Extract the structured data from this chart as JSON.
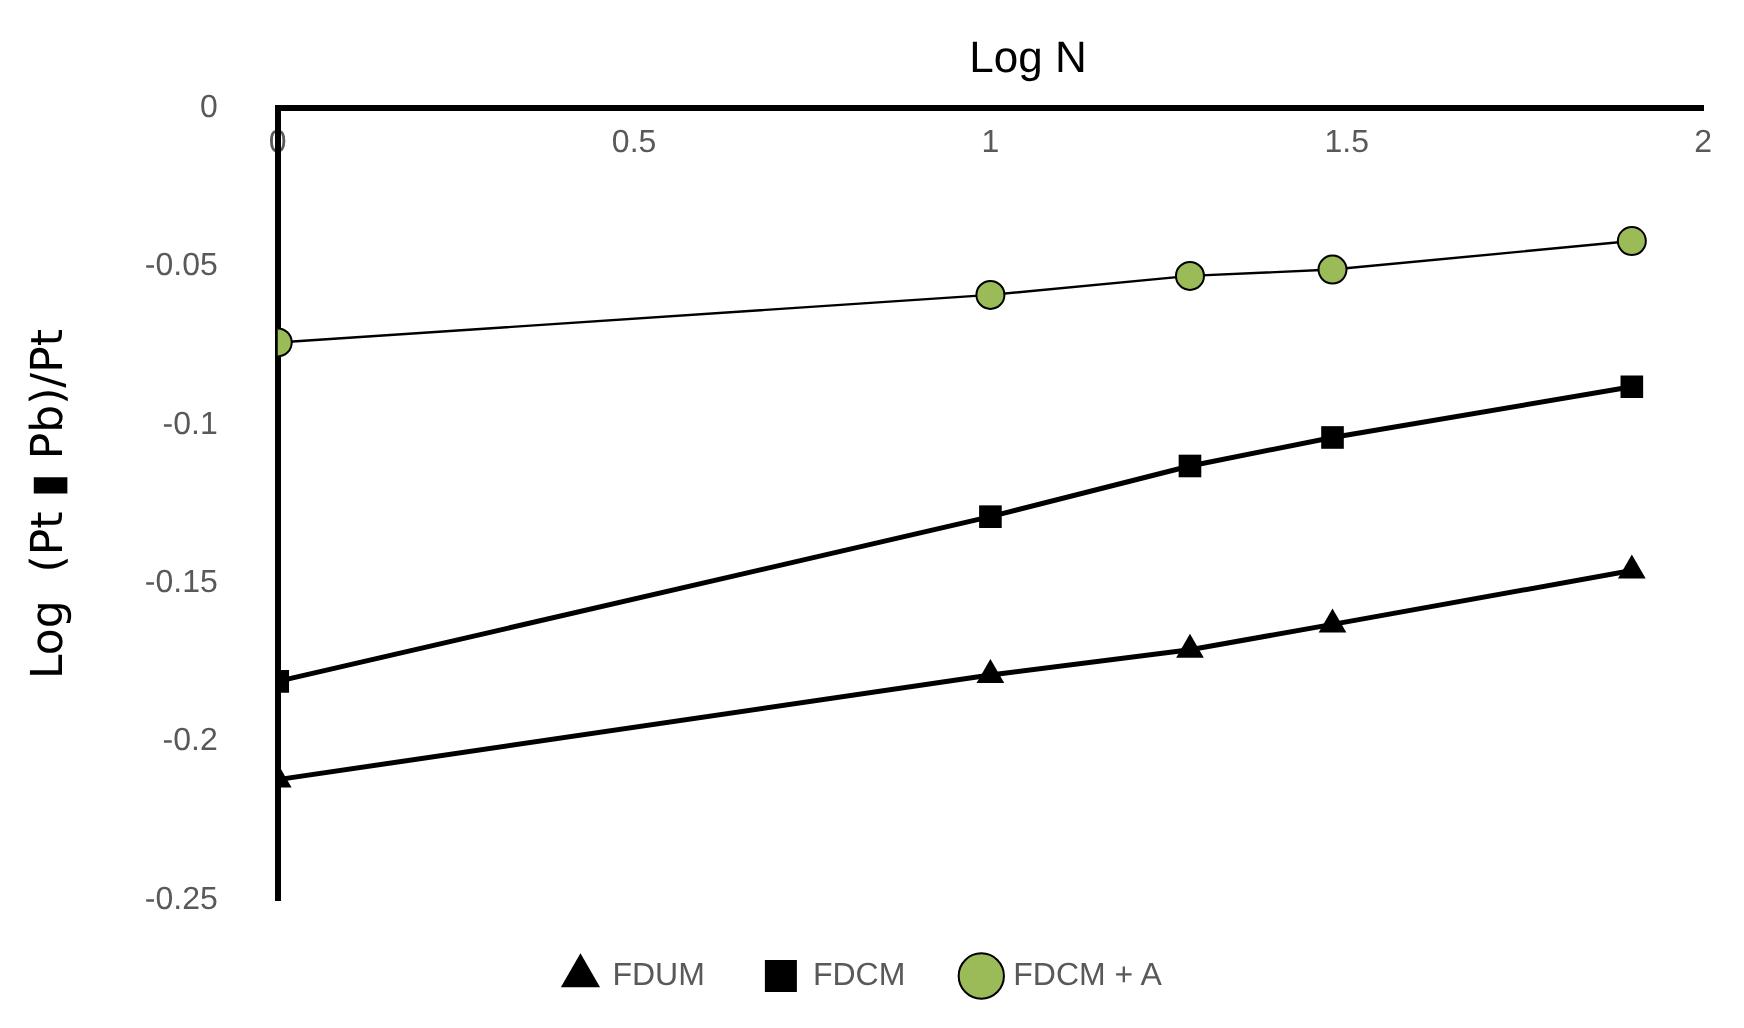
{
  "chart_data": {
    "type": "line",
    "xlabel": "Log N",
    "ylabel": "Log  (Pt ▮ Pb)/Pt",
    "xlim": [
      0,
      2
    ],
    "xticks": [
      0,
      0.5,
      1,
      1.5,
      2
    ],
    "ylim": [
      -0.25,
      0
    ],
    "yticks": [
      -0.25,
      -0.2,
      -0.15,
      -0.1,
      -0.05,
      0
    ],
    "grid": false,
    "legend": "bottom",
    "line_style": "solid",
    "x": [
      0,
      1,
      1.28,
      1.48,
      1.9
    ],
    "series": [
      {
        "name": "FDUM",
        "color": "#000000",
        "marker": "triangle",
        "values": [
          -0.212,
          -0.179,
          -0.171,
          -0.163,
          -0.146
        ]
      },
      {
        "name": "FDCM",
        "color": "#000000",
        "marker": "square",
        "values": [
          -0.181,
          -0.129,
          -0.113,
          -0.104,
          -0.088
        ]
      },
      {
        "name": "FDCM + A",
        "color": "#9bbb59",
        "marker": "circle",
        "values": [
          -0.074,
          -0.059,
          -0.053,
          -0.051,
          -0.042
        ]
      }
    ]
  }
}
